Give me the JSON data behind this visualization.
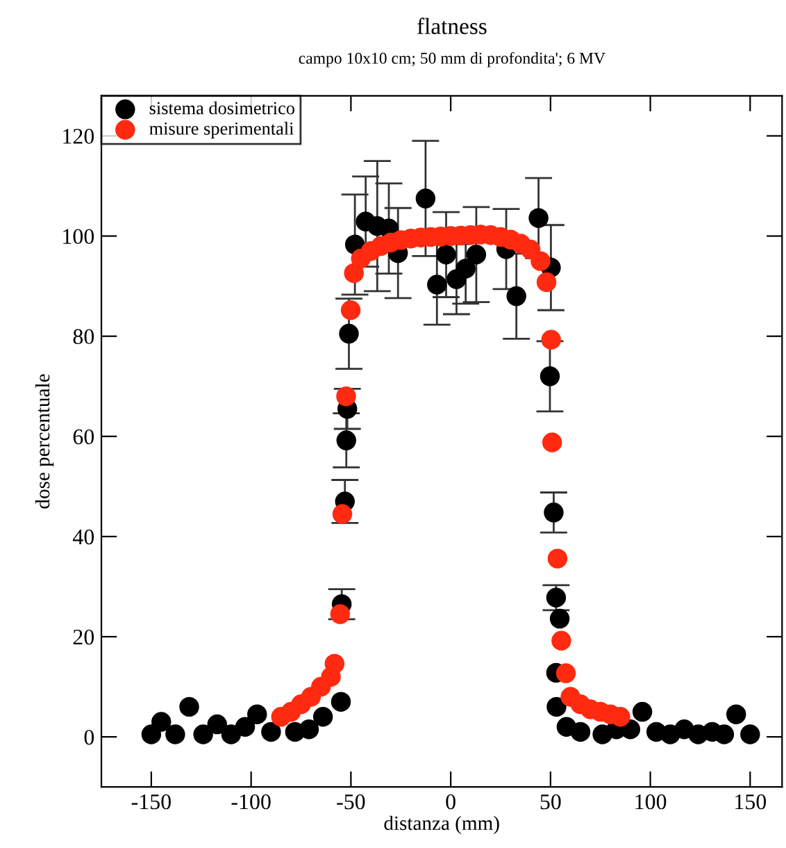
{
  "chart_data": {
    "type": "scatter",
    "title": "flatness",
    "subtitle": "campo 10x10 cm; 50 mm di profondita'; 6 MV",
    "xlabel": "distanza (mm)",
    "ylabel": "dose percentuale",
    "xlim": [
      -175,
      166
    ],
    "ylim": [
      -10,
      128
    ],
    "xticks": [
      -150,
      -100,
      -50,
      0,
      50,
      100,
      150
    ],
    "yticks": [
      0,
      20,
      40,
      60,
      80,
      100,
      120
    ],
    "legend": "top left",
    "marker": "circle",
    "grid": false,
    "series": [
      {
        "name": "sistema dosimetrico",
        "color": "#000000",
        "x": [
          -150,
          -145,
          -138,
          -131,
          -124,
          -117,
          -110,
          -103,
          -97,
          -90,
          -84,
          -78,
          -71,
          -64,
          -55,
          -54.6,
          -53,
          -52.3,
          -51.8,
          -51,
          -48,
          -42.6,
          -36.8,
          -31,
          -26.4,
          -18.4,
          -12.6,
          -6.9,
          -2.3,
          2.9,
          7.5,
          12.8,
          23.2,
          27.8,
          32.9,
          44,
          50.2,
          49.7,
          51.6,
          52.8,
          54.6,
          52.8,
          53,
          58,
          65,
          76,
          83,
          90,
          96,
          103,
          110,
          117,
          124,
          131,
          137,
          143,
          150
        ],
        "values": [
          0.5,
          3,
          0.5,
          6,
          0.5,
          2.5,
          0.5,
          2,
          4.5,
          1,
          null,
          1,
          1.5,
          4,
          7,
          26.5,
          47,
          59.2,
          65.5,
          80.5,
          98.3,
          102.9,
          102,
          101.5,
          96.6,
          null,
          107.5,
          90.3,
          96.3,
          91.4,
          93.5,
          96.3,
          null,
          97.4,
          88,
          103.6,
          93.7,
          72,
          44.8,
          27.8,
          23.6,
          12.8,
          6,
          2,
          1,
          0.5,
          1.5,
          1.5,
          5,
          1,
          0.5,
          1.5,
          0.5,
          1,
          0.5,
          4.5,
          0.5
        ],
        "errors": [
          null,
          null,
          null,
          null,
          null,
          null,
          null,
          null,
          null,
          null,
          null,
          null,
          null,
          null,
          null,
          3,
          4.3,
          5.4,
          4,
          7,
          10,
          9,
          13,
          9,
          9,
          null,
          11.5,
          8,
          8.5,
          7,
          7,
          9.5,
          null,
          8,
          8.5,
          8,
          8.5,
          7,
          4,
          2.5,
          null,
          null,
          null,
          null,
          null,
          null,
          null,
          null,
          null,
          null,
          null,
          null,
          null,
          null,
          null,
          null,
          null
        ]
      },
      {
        "name": "misure sperimentali",
        "color": "#ff2a10",
        "x": [
          -85,
          -80,
          -75,
          -70,
          -65,
          -60,
          -58.2,
          -55.4,
          -54.3,
          -52.4,
          -50.1,
          -48.5,
          -45,
          -40,
          -35,
          -30,
          -25,
          -20,
          -15,
          -10,
          -5,
          0,
          5,
          10,
          15,
          20,
          25,
          30,
          35,
          40,
          45,
          48,
          50.3,
          50.8,
          53.5,
          55.4,
          57.7,
          60,
          65,
          70,
          75,
          80,
          85
        ],
        "values": [
          4,
          5,
          6.5,
          8,
          10,
          12,
          14.6,
          24.5,
          44.5,
          68,
          85.2,
          92.6,
          95.5,
          97,
          98,
          98.7,
          99.2,
          99.5,
          99.7,
          99.8,
          99.9,
          100,
          100.1,
          100.2,
          100.3,
          100.2,
          99.8,
          99.3,
          98.5,
          97.3,
          95,
          90.8,
          79.3,
          58.8,
          35.6,
          19.2,
          12.7,
          8,
          6.5,
          5.5,
          5,
          4.5,
          4
        ]
      }
    ]
  }
}
